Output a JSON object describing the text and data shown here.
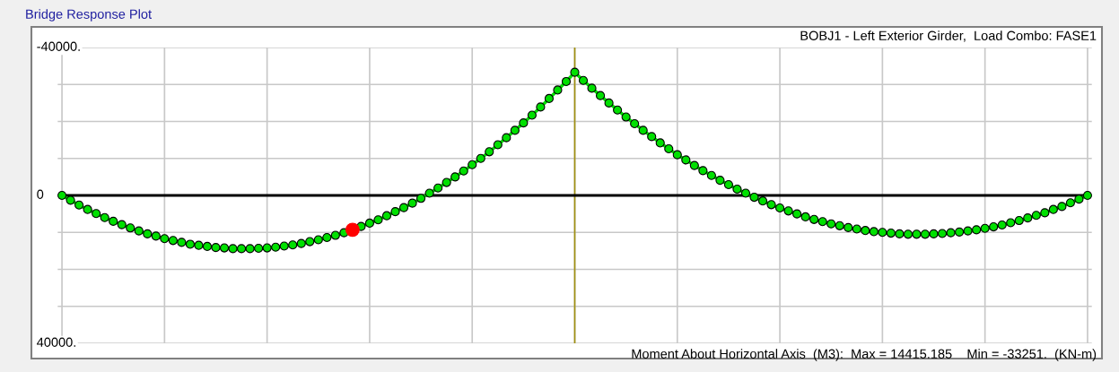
{
  "chart_data": {
    "type": "line",
    "title": "Bridge Response Plot",
    "subtitle": "BOBJ1 - Left Exterior Girder,  Load Combo: FASE1",
    "xlabel": "Moment About Horizontal Axis  (M3):  Max = 14415.185    Min = -33251.  (KN-m)",
    "categories": [
      null,
      null,
      null,
      null,
      null,
      null,
      null,
      null,
      null,
      null,
      null,
      null,
      null,
      null,
      null,
      null,
      null,
      null,
      null,
      null,
      null,
      null,
      null,
      null,
      null,
      null,
      null,
      null,
      null,
      null,
      null,
      null,
      null,
      null,
      null,
      null,
      null,
      null,
      null,
      null,
      null,
      null,
      null,
      null,
      null,
      null,
      null,
      null,
      null,
      null,
      null,
      null,
      null,
      null,
      null,
      null,
      null,
      null,
      null,
      null,
      null,
      null,
      null,
      null,
      null,
      null,
      null,
      null,
      null,
      null,
      null,
      null,
      null,
      null,
      null,
      null,
      null,
      null,
      null,
      null,
      null,
      null,
      null,
      null,
      null,
      null,
      null,
      null,
      null,
      null,
      null,
      null,
      null,
      null,
      null,
      null,
      null,
      null,
      null,
      null,
      null,
      null,
      null,
      null,
      null,
      null,
      null,
      null,
      null,
      null,
      null,
      null,
      null,
      null,
      null,
      null,
      null,
      null,
      null,
      null,
      null
    ],
    "series": [
      {
        "color": "#00e000",
        "marker": "circle",
        "values": [
          0,
          1300,
          2600,
          3800,
          4900,
          6000,
          7000,
          7900,
          8800,
          9600,
          10400,
          11000,
          11700,
          12200,
          12700,
          13200,
          13500,
          13800,
          14100,
          14200,
          14400,
          14400,
          14400,
          14300,
          14200,
          14000,
          13700,
          13400,
          13000,
          12500,
          12000,
          11400,
          10800,
          10100,
          9300,
          8400,
          7500,
          6600,
          5500,
          4400,
          3300,
          2100,
          800,
          -600,
          -2000,
          -3500,
          -5000,
          -6600,
          -8300,
          -10000,
          -11800,
          -13700,
          -15600,
          -17600,
          -19600,
          -21700,
          -23900,
          -26200,
          -28500,
          -30800,
          -33300,
          -31100,
          -29000,
          -27000,
          -25000,
          -23100,
          -21200,
          -19400,
          -17600,
          -15900,
          -14200,
          -12600,
          -11000,
          -9600,
          -8100,
          -6700,
          -5400,
          -4100,
          -2900,
          -1700,
          -600,
          500,
          1500,
          2500,
          3400,
          4200,
          5000,
          5800,
          6500,
          7100,
          7700,
          8200,
          8700,
          9100,
          9500,
          9800,
          10000,
          10200,
          10400,
          10500,
          10500,
          10500,
          10400,
          10300,
          10100,
          9900,
          9600,
          9300,
          8900,
          8500,
          8000,
          7400,
          6800,
          6100,
          5400,
          4700,
          3800,
          3000,
          2000,
          1000,
          0
        ]
      },
      {
        "type": "scatter",
        "color": "#ff0000",
        "marker": "circle",
        "values": [
          null,
          null,
          null,
          null,
          null,
          null,
          null,
          null,
          null,
          null,
          null,
          null,
          null,
          null,
          null,
          null,
          null,
          null,
          null,
          null,
          null,
          null,
          null,
          null,
          null,
          null,
          null,
          null,
          null,
          null,
          null,
          null,
          null,
          null,
          9300,
          null,
          null,
          null,
          null,
          null,
          null,
          null,
          null,
          null,
          null,
          null,
          null,
          null,
          null,
          null,
          null,
          null,
          null,
          null,
          null,
          null,
          null,
          null,
          null,
          null,
          null,
          null,
          null,
          null,
          null,
          null,
          null,
          null,
          null,
          null,
          null,
          null,
          null,
          null,
          null,
          null,
          null,
          null,
          null,
          null,
          null,
          null,
          null,
          null,
          null,
          null,
          null,
          null,
          null,
          null,
          null,
          null,
          null,
          null,
          null,
          null,
          null,
          null,
          null,
          null,
          null,
          null,
          null,
          null,
          null,
          null,
          null,
          null,
          null,
          null,
          null,
          null,
          null,
          null,
          null,
          null,
          null,
          null,
          null,
          null,
          null
        ]
      }
    ],
    "ylim": [
      40000,
      -40000
    ],
    "yticks": [
      {
        "value": -40000,
        "label": "-40000."
      },
      {
        "value": -30000,
        "label": null
      },
      {
        "value": -20000,
        "label": null
      },
      {
        "value": -10000,
        "label": null
      },
      0,
      {
        "value": 10000,
        "label": null
      },
      {
        "value": 20000,
        "label": null
      },
      {
        "value": 30000,
        "label": null
      },
      {
        "value": 40000,
        "label": "40000."
      }
    ],
    "ref_lines": [
      {
        "axis": "y",
        "value": 0,
        "color": "#000000"
      }
    ],
    "grid": true,
    "legend": false
  }
}
